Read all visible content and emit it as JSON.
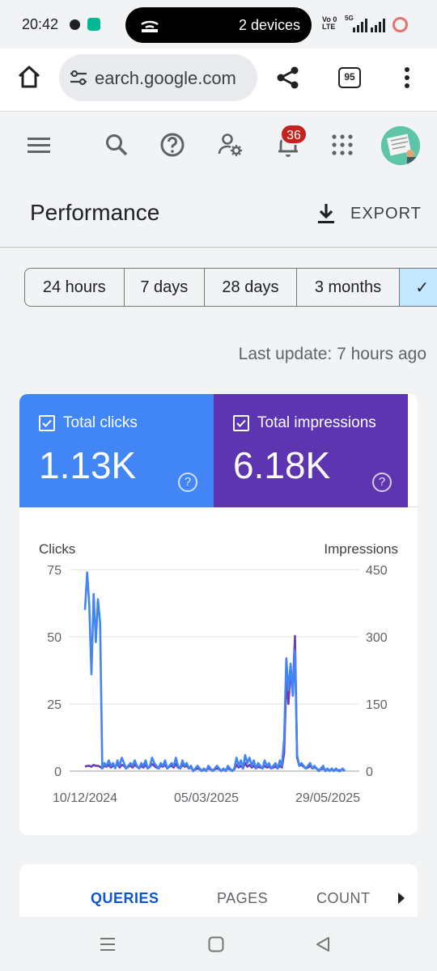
{
  "status": {
    "time": "20:42",
    "devices_pill": "2 devices",
    "network_top": "Vo 0",
    "network_bottom": "LTE",
    "network_gen": "5G"
  },
  "browser": {
    "url": "earch.google.com",
    "tab_count": "95"
  },
  "header": {
    "notification_count": "36"
  },
  "page": {
    "title": "Performance",
    "export_label": "EXPORT"
  },
  "ranges": [
    {
      "label": "24 hours",
      "active": false
    },
    {
      "label": "7 days",
      "active": false
    },
    {
      "label": "28 days",
      "active": false
    },
    {
      "label": "3 months",
      "active": false
    },
    {
      "label": "✓",
      "active": true
    }
  ],
  "last_update": "Last update: 7 hours ago",
  "metrics": {
    "clicks": {
      "label": "Total clicks",
      "value": "1.13K",
      "help": "?"
    },
    "impressions": {
      "label": "Total impressions",
      "value": "6.18K",
      "help": "?"
    }
  },
  "chart_data": {
    "type": "line",
    "left_axis_title": "Clicks",
    "right_axis_title": "Impressions",
    "left_ticks": [
      "75",
      "50",
      "25",
      "0"
    ],
    "right_ticks": [
      "450",
      "300",
      "150",
      "0"
    ],
    "x_tick_labels": [
      "10/12/2024",
      "05/03/2025",
      "29/05/2025"
    ],
    "ylim_left": [
      0,
      75
    ],
    "ylim_right": [
      0,
      450
    ],
    "grid": true,
    "series": [
      {
        "axis": "left",
        "color": "#4285f4",
        "values": [
          60,
          74,
          62,
          36,
          66,
          48,
          64,
          55,
          1,
          3,
          2,
          4,
          2,
          3,
          1,
          4,
          2,
          5,
          3,
          1,
          2,
          3,
          2,
          4,
          2,
          1,
          3,
          2,
          4,
          1,
          2,
          5,
          3,
          2,
          1,
          3,
          2,
          4,
          1,
          2,
          3,
          2,
          5,
          2,
          1,
          4,
          2,
          3,
          1,
          2,
          0,
          1,
          2,
          1,
          0,
          1,
          0,
          2,
          1,
          0,
          1,
          2,
          1,
          0,
          1,
          0,
          2,
          1,
          0,
          1,
          5,
          2,
          4,
          1,
          6,
          3,
          5,
          2,
          4,
          1,
          3,
          2,
          1,
          4,
          2,
          3,
          1,
          2,
          3,
          1,
          4,
          2,
          12,
          42,
          30,
          40,
          28,
          45,
          6,
          2,
          3,
          2,
          1,
          2,
          3,
          1,
          2,
          1,
          0,
          1,
          2,
          0,
          1,
          0,
          1,
          0,
          1,
          0,
          0,
          1,
          0
        ]
      },
      {
        "axis": "right",
        "color": "#6a3fb5",
        "values": [
          10,
          12,
          12,
          10,
          14,
          12,
          12,
          10,
          6,
          12,
          10,
          14,
          8,
          12,
          10,
          16,
          8,
          14,
          12,
          6,
          10,
          12,
          8,
          14,
          10,
          6,
          12,
          8,
          14,
          6,
          10,
          16,
          12,
          8,
          6,
          12,
          10,
          14,
          6,
          10,
          12,
          8,
          16,
          8,
          6,
          14,
          10,
          12,
          6,
          8,
          2,
          4,
          6,
          4,
          2,
          4,
          2,
          6,
          4,
          2,
          4,
          6,
          4,
          2,
          4,
          2,
          6,
          4,
          2,
          4,
          14,
          8,
          12,
          6,
          18,
          10,
          14,
          8,
          12,
          6,
          10,
          8,
          6,
          12,
          8,
          10,
          6,
          8,
          10,
          6,
          12,
          8,
          40,
          200,
          150,
          220,
          180,
          302,
          30,
          12,
          14,
          10,
          6,
          8,
          12,
          6,
          8,
          6,
          2,
          4,
          6,
          2,
          4,
          2,
          4,
          2,
          4,
          2,
          2,
          4,
          2
        ]
      }
    ]
  },
  "tabs": [
    {
      "label": "QUERIES",
      "active": true
    },
    {
      "label": "PAGES",
      "active": false
    },
    {
      "label": "COUNT",
      "active": false
    }
  ]
}
